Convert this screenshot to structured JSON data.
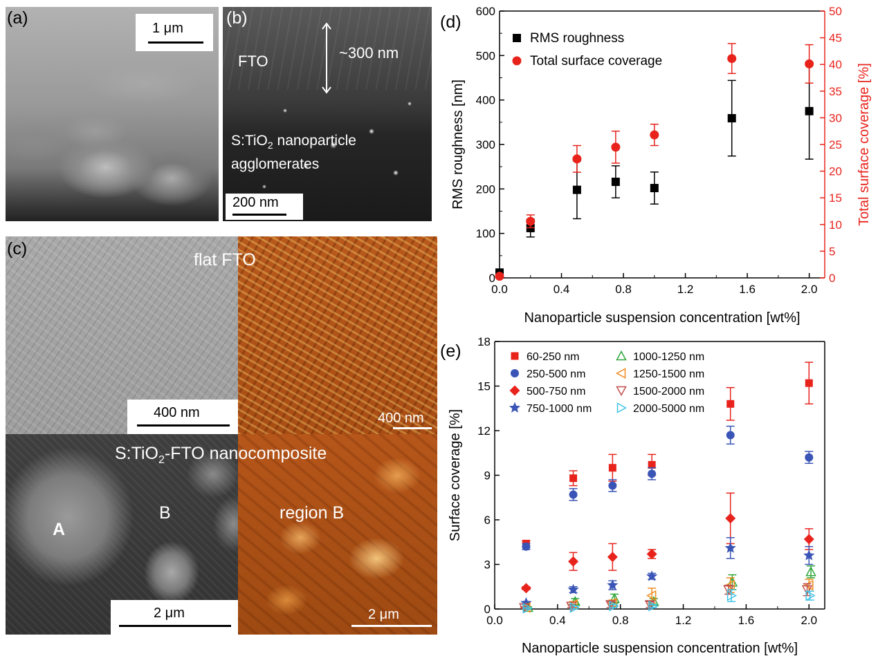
{
  "panels": {
    "a": {
      "label": "(a)",
      "scale_bar": "1 μm"
    },
    "b": {
      "label": "(b)",
      "layer_label": "FTO",
      "thickness_label": "~300 nm",
      "particle_label_prefix": "S:TiO",
      "particle_label_sub": "2",
      "particle_label_suffix": " nanoparticle",
      "particle_label_line2": "agglomerates",
      "scale_bar": "200 nm"
    },
    "c": {
      "label": "(c)",
      "top_title": "flat FTO",
      "sem_scale_bar": "400 nm",
      "afm_scale_bar": "400 nm",
      "bottom_title_prefix": "S:TiO",
      "bottom_title_sub": "2",
      "bottom_title_suffix": "-FTO nanocomposite",
      "region_a": "A",
      "region_b": "B",
      "afm_region_label": "region B",
      "sem_bottom_scale_bar": "2 μm",
      "afm_bottom_scale_bar": "2 μm"
    }
  },
  "colors": {
    "rms": "#000000",
    "coverage": "#e8231c",
    "red_series": "#e8231c",
    "blue_series": "#3a55b6",
    "green_series": "#2fa63a",
    "orange_series": "#f08a1c",
    "brown_series": "#c0504d",
    "cyan_series": "#40c4e6"
  },
  "chart_data": [
    {
      "panel": "(d)",
      "type": "scatter",
      "xlabel": "Nanoparticle suspension concentration [wt%]",
      "ylabel": "RMS roughness [nm]",
      "y2label": "Total surface coverage [%]",
      "xlim": [
        0,
        2.1
      ],
      "ylim": [
        0,
        600
      ],
      "y2lim": [
        0,
        50
      ],
      "x_ticks": [
        "0.0",
        "0.4",
        "0.8",
        "1.2",
        "1.6",
        "2.0"
      ],
      "y_ticks": [
        "0",
        "100",
        "200",
        "300",
        "400",
        "500",
        "600"
      ],
      "y2_ticks": [
        "0",
        "5",
        "10",
        "15",
        "20",
        "25",
        "30",
        "35",
        "40",
        "45",
        "50"
      ],
      "legend_position": "top-left",
      "series": [
        {
          "name": "RMS roughness",
          "axis": "left",
          "marker": "square",
          "x": [
            0.0,
            0.2,
            0.5,
            0.75,
            1.0,
            1.5,
            2.0
          ],
          "y": [
            12,
            112,
            198,
            216,
            202,
            359,
            375
          ],
          "err": [
            0,
            20,
            65,
            36,
            36,
            85,
            108
          ]
        },
        {
          "name": "Total surface coverage",
          "axis": "right",
          "marker": "circle",
          "x": [
            0.0,
            0.2,
            0.5,
            0.75,
            1.0,
            1.5,
            2.0
          ],
          "y": [
            0.3,
            10.6,
            22.3,
            24.5,
            26.8,
            41.1,
            40.1
          ],
          "err": [
            0,
            1.2,
            2.5,
            3.0,
            2.0,
            2.8,
            3.6
          ]
        }
      ]
    },
    {
      "panel": "(e)",
      "type": "scatter",
      "xlabel": "Nanoparticle suspension concentration [wt%]",
      "ylabel": "Surface coverage [%]",
      "xlim": [
        0,
        2.1
      ],
      "ylim": [
        0,
        18
      ],
      "x_ticks": [
        "0.0",
        "0.4",
        "0.8",
        "1.2",
        "1.6",
        "2.0"
      ],
      "y_ticks": [
        "0",
        "3",
        "6",
        "9",
        "12",
        "15",
        "18"
      ],
      "legend_position": "top-left",
      "series": [
        {
          "name": "60-250 nm",
          "marker": "filled-square",
          "x": [
            0.2,
            0.5,
            0.75,
            1.0,
            1.5,
            2.0
          ],
          "y": [
            4.4,
            8.8,
            9.5,
            9.7,
            13.8,
            15.2
          ],
          "err": [
            0.2,
            0.5,
            0.9,
            0.7,
            1.1,
            1.4
          ]
        },
        {
          "name": "250-500 nm",
          "marker": "filled-circle",
          "x": [
            0.2,
            0.5,
            0.75,
            1.0,
            1.5,
            2.0
          ],
          "y": [
            4.2,
            7.7,
            8.3,
            9.1,
            11.7,
            10.2
          ],
          "err": [
            0.2,
            0.4,
            0.4,
            0.4,
            0.6,
            0.4
          ]
        },
        {
          "name": "500-750 nm",
          "marker": "filled-diamond",
          "x": [
            0.2,
            0.5,
            0.75,
            1.0,
            1.5,
            2.0
          ],
          "y": [
            1.4,
            3.2,
            3.5,
            3.7,
            6.1,
            4.7
          ],
          "err": [
            0.1,
            0.6,
            0.9,
            0.3,
            1.7,
            0.7
          ]
        },
        {
          "name": "750-1000 nm",
          "marker": "filled-star",
          "x": [
            0.2,
            0.5,
            0.75,
            1.0,
            1.5,
            2.0
          ],
          "y": [
            0.4,
            1.3,
            1.6,
            2.2,
            4.1,
            3.6
          ],
          "err": [
            0.1,
            0.2,
            0.3,
            0.2,
            0.7,
            0.6
          ]
        },
        {
          "name": "1000-1250 nm",
          "marker": "open-triangle-up",
          "x": [
            0.2,
            0.5,
            0.75,
            1.0,
            1.5,
            2.0
          ],
          "y": [
            0.1,
            0.5,
            0.7,
            0.5,
            1.8,
            2.5
          ],
          "err": [
            0.05,
            0.2,
            0.3,
            0.2,
            0.5,
            0.4
          ]
        },
        {
          "name": "1250-1500 nm",
          "marker": "open-triangle-left",
          "x": [
            0.2,
            0.5,
            0.75,
            1.0,
            1.5,
            2.0
          ],
          "y": [
            0.1,
            0.3,
            0.4,
            0.9,
            1.6,
            1.6
          ],
          "err": [
            0.05,
            0.2,
            0.2,
            0.5,
            0.5,
            0.4
          ]
        },
        {
          "name": "1500-2000 nm",
          "marker": "open-triangle-down",
          "x": [
            0.2,
            0.5,
            0.75,
            1.0,
            1.5,
            2.0
          ],
          "y": [
            0.1,
            0.2,
            0.3,
            0.3,
            1.3,
            1.3
          ],
          "err": [
            0.05,
            0.1,
            0.2,
            0.2,
            0.3,
            0.4
          ]
        },
        {
          "name": "2000-5000 nm",
          "marker": "open-triangle-right",
          "x": [
            0.2,
            0.5,
            0.75,
            1.0,
            1.5,
            2.0
          ],
          "y": [
            0.05,
            0.1,
            0.2,
            0.2,
            0.9,
            0.9
          ],
          "err": [
            0.05,
            0.1,
            0.1,
            0.1,
            0.4,
            0.3
          ]
        }
      ]
    }
  ]
}
